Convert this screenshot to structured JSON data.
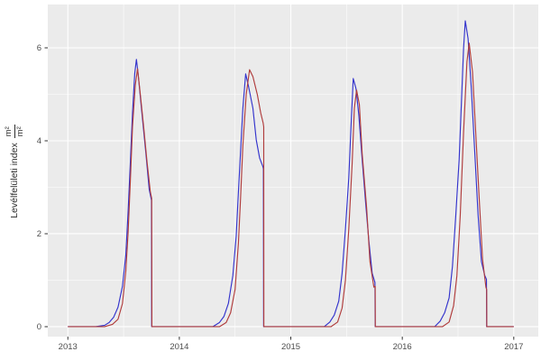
{
  "figure": {
    "background": "#ffffff",
    "tick_color": "#333333",
    "tick_label_color": "#4d4d4d",
    "axis_title_color": "#2b2b2b"
  },
  "chart_data": {
    "type": "line",
    "title": "",
    "xlabel": "",
    "ylabel_text": "Levélfelületi index",
    "ylabel_unit_numerator": "m²",
    "ylabel_unit_denominator": "m²",
    "panel_bg": "#ebebeb",
    "grid": {
      "on": true,
      "major_color": "#ffffff",
      "minor_color": "#ffffff",
      "legend_position": "none"
    },
    "x_axis": {
      "range": [
        2012.82,
        2017.22
      ],
      "ticks": [
        2013,
        2014,
        2015,
        2016,
        2017
      ],
      "tick_labels": [
        "2013",
        "2014",
        "2015",
        "2016",
        "2017"
      ],
      "minor_ticks": [
        2013.5,
        2014.5,
        2015.5,
        2016.5
      ]
    },
    "y_axis": {
      "range": [
        -0.214,
        6.932
      ],
      "ticks": [
        0,
        2,
        4,
        6
      ],
      "tick_labels": [
        "0",
        "2",
        "4",
        "6"
      ],
      "minor_ticks": [
        1,
        3,
        5
      ]
    },
    "series": [
      {
        "name": "blue-series",
        "color": "#3333cc",
        "points": [
          [
            2013.0,
            0
          ],
          [
            2013.25,
            0
          ],
          [
            2013.33,
            0.03
          ],
          [
            2013.37,
            0.09
          ],
          [
            2013.41,
            0.2
          ],
          [
            2013.45,
            0.42
          ],
          [
            2013.49,
            0.87
          ],
          [
            2013.52,
            1.55
          ],
          [
            2013.54,
            2.45
          ],
          [
            2013.56,
            3.5
          ],
          [
            2013.58,
            4.6
          ],
          [
            2013.6,
            5.45
          ],
          [
            2013.615,
            5.75
          ],
          [
            2013.63,
            5.45
          ],
          [
            2013.66,
            4.7
          ],
          [
            2013.7,
            3.73
          ],
          [
            2013.73,
            2.95
          ],
          [
            2013.75,
            2.72
          ],
          [
            2013.752,
            0
          ],
          [
            2014.0,
            0
          ],
          [
            2014.3,
            0
          ],
          [
            2014.36,
            0.09
          ],
          [
            2014.4,
            0.22
          ],
          [
            2014.44,
            0.5
          ],
          [
            2014.48,
            1.1
          ],
          [
            2014.51,
            1.95
          ],
          [
            2014.53,
            2.9
          ],
          [
            2014.55,
            3.8
          ],
          [
            2014.57,
            4.7
          ],
          [
            2014.595,
            5.44
          ],
          [
            2014.62,
            5.18
          ],
          [
            2014.66,
            4.7
          ],
          [
            2014.69,
            4.02
          ],
          [
            2014.72,
            3.63
          ],
          [
            2014.75,
            3.44
          ],
          [
            2014.754,
            3.4
          ],
          [
            2014.756,
            0
          ],
          [
            2015.0,
            0
          ],
          [
            2015.3,
            0
          ],
          [
            2015.35,
            0.1
          ],
          [
            2015.39,
            0.25
          ],
          [
            2015.43,
            0.55
          ],
          [
            2015.46,
            1.15
          ],
          [
            2015.49,
            2.1
          ],
          [
            2015.52,
            3.2
          ],
          [
            2015.54,
            4.3
          ],
          [
            2015.56,
            5.34
          ],
          [
            2015.585,
            5.12
          ],
          [
            2015.61,
            4.55
          ],
          [
            2015.64,
            3.6
          ],
          [
            2015.67,
            2.7
          ],
          [
            2015.7,
            1.85
          ],
          [
            2015.73,
            1.15
          ],
          [
            2015.755,
            0.95
          ],
          [
            2015.757,
            0
          ],
          [
            2016.0,
            0
          ],
          [
            2016.29,
            0
          ],
          [
            2016.34,
            0.12
          ],
          [
            2016.38,
            0.3
          ],
          [
            2016.42,
            0.62
          ],
          [
            2016.45,
            1.3
          ],
          [
            2016.48,
            2.4
          ],
          [
            2016.51,
            3.6
          ],
          [
            2016.53,
            4.8
          ],
          [
            2016.55,
            6.0
          ],
          [
            2016.565,
            6.58
          ],
          [
            2016.59,
            6.2
          ],
          [
            2016.62,
            5.1
          ],
          [
            2016.65,
            3.75
          ],
          [
            2016.68,
            2.4
          ],
          [
            2016.71,
            1.4
          ],
          [
            2016.74,
            1.1
          ],
          [
            2016.755,
            1.02
          ],
          [
            2016.757,
            0
          ],
          [
            2017.0,
            0
          ]
        ]
      },
      {
        "name": "red-series",
        "color": "#b03c3c",
        "points": [
          [
            2013.0,
            0
          ],
          [
            2013.33,
            0
          ],
          [
            2013.4,
            0.05
          ],
          [
            2013.45,
            0.16
          ],
          [
            2013.49,
            0.5
          ],
          [
            2013.52,
            1.2
          ],
          [
            2013.54,
            2.0
          ],
          [
            2013.56,
            3.1
          ],
          [
            2013.58,
            4.3
          ],
          [
            2013.605,
            5.2
          ],
          [
            2013.625,
            5.55
          ],
          [
            2013.65,
            5.0
          ],
          [
            2013.68,
            4.3
          ],
          [
            2013.71,
            3.55
          ],
          [
            2013.74,
            2.9
          ],
          [
            2013.752,
            2.76
          ],
          [
            2013.754,
            0
          ],
          [
            2014.0,
            0
          ],
          [
            2014.36,
            0
          ],
          [
            2014.42,
            0.09
          ],
          [
            2014.46,
            0.3
          ],
          [
            2014.5,
            0.8
          ],
          [
            2014.53,
            1.8
          ],
          [
            2014.55,
            2.8
          ],
          [
            2014.57,
            3.9
          ],
          [
            2014.6,
            5.0
          ],
          [
            2014.63,
            5.53
          ],
          [
            2014.66,
            5.38
          ],
          [
            2014.7,
            4.99
          ],
          [
            2014.73,
            4.6
          ],
          [
            2014.752,
            4.38
          ],
          [
            2014.757,
            4.3
          ],
          [
            2014.758,
            0
          ],
          [
            2015.0,
            0
          ],
          [
            2015.36,
            0
          ],
          [
            2015.42,
            0.1
          ],
          [
            2015.46,
            0.4
          ],
          [
            2015.49,
            1.0
          ],
          [
            2015.52,
            2.1
          ],
          [
            2015.55,
            3.5
          ],
          [
            2015.57,
            4.7
          ],
          [
            2015.59,
            5.09
          ],
          [
            2015.615,
            4.78
          ],
          [
            2015.64,
            3.73
          ],
          [
            2015.68,
            2.56
          ],
          [
            2015.71,
            1.4
          ],
          [
            2015.745,
            0.85
          ],
          [
            2015.757,
            0.87
          ],
          [
            2015.758,
            0
          ],
          [
            2016.0,
            0
          ],
          [
            2016.36,
            0
          ],
          [
            2016.42,
            0.1
          ],
          [
            2016.46,
            0.45
          ],
          [
            2016.49,
            1.1
          ],
          [
            2016.52,
            2.4
          ],
          [
            2016.55,
            4.2
          ],
          [
            2016.58,
            5.7
          ],
          [
            2016.6,
            6.1
          ],
          [
            2016.63,
            5.48
          ],
          [
            2016.66,
            4.12
          ],
          [
            2016.69,
            2.76
          ],
          [
            2016.72,
            1.45
          ],
          [
            2016.75,
            0.85
          ],
          [
            2016.757,
            0.8
          ],
          [
            2016.758,
            0
          ],
          [
            2017.0,
            0
          ]
        ]
      }
    ]
  }
}
